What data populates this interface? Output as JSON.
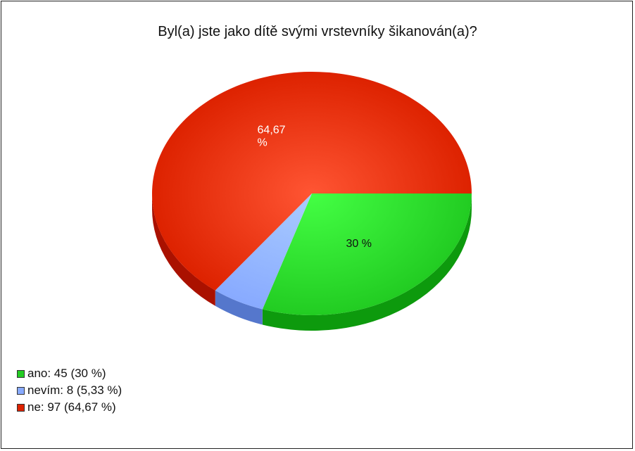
{
  "chart_data": {
    "type": "pie",
    "title": "Byl(a) jste jako dítě svými vrstevníky šikanován(a)?",
    "slices": [
      {
        "label": "ano",
        "count": 45,
        "percent": 30,
        "percent_label": "30 %",
        "legend_text": "ano: 45 (30 %)",
        "color": "#22cc22",
        "dark_color": "#0d9a0d",
        "show_label": true,
        "label_color": "#111111"
      },
      {
        "label": "nevím",
        "count": 8,
        "percent": 5.33,
        "percent_label": "5,33 %",
        "legend_text": "nevím: 8 (5,33 %)",
        "color": "#88aaff",
        "dark_color": "#5577cc",
        "show_label": false,
        "label_color": "#111111"
      },
      {
        "label": "ne",
        "count": 97,
        "percent": 64.67,
        "percent_label": "64,67 %",
        "legend_text": "ne: 97 (64,67 %)",
        "color": "#dd2200",
        "dark_color": "#aa1100",
        "show_label": true,
        "label_color": "#ffffff"
      }
    ],
    "legend_position": "bottom-left"
  }
}
